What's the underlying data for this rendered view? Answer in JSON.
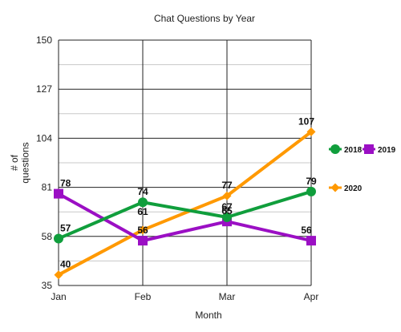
{
  "chart_data": {
    "type": "line",
    "title": "Chat Questions by Year",
    "xlabel": "Month",
    "ylabel": "# of questions",
    "categories": [
      "Jan",
      "Feb",
      "Mar",
      "Apr"
    ],
    "ylim": [
      35,
      150
    ],
    "yticks": [
      35,
      58,
      81,
      104,
      127,
      150
    ],
    "grid": true,
    "legend_position": "right",
    "series": [
      {
        "name": "2018",
        "color": "#109e3c",
        "marker": "circle",
        "values": [
          57,
          74,
          67,
          79
        ]
      },
      {
        "name": "2019",
        "color": "#9b0fc4",
        "marker": "square",
        "values": [
          78,
          56,
          65,
          56
        ]
      },
      {
        "name": "2020",
        "color": "#ff9900",
        "marker": "diamond",
        "values": [
          40,
          61,
          77,
          107
        ]
      }
    ]
  }
}
